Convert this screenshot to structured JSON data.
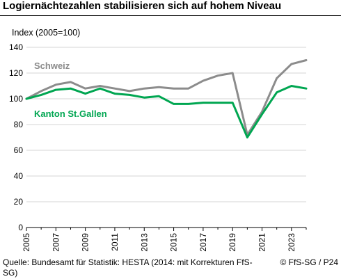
{
  "title": "Logiernächtezahlen stabilisieren sich auf hohem Niveau",
  "source": "Quelle: Bundesamt für Statistik: HESTA (2014: mit Korrekturen FfS-SG)",
  "copyright": "© FfS-SG / P24",
  "chart_data": {
    "type": "line",
    "ylabel": "Index (2005=100)",
    "ylim": [
      0,
      140
    ],
    "yticks": [
      0,
      20,
      40,
      60,
      80,
      100,
      120,
      140
    ],
    "xlim": [
      2005,
      2024
    ],
    "xticks": [
      "2005",
      "2007",
      "2009",
      "2011",
      "2013",
      "2015",
      "2017",
      "2019",
      "2021",
      "2023"
    ],
    "x": [
      2005,
      2006,
      2007,
      2008,
      2009,
      2010,
      2011,
      2012,
      2013,
      2014,
      2015,
      2016,
      2017,
      2018,
      2019,
      2020,
      2021,
      2022,
      2023,
      2024
    ],
    "grid": true,
    "series": [
      {
        "name": "Schweiz",
        "color": "#8c8c8c",
        "values": [
          100,
          106,
          111,
          113,
          108,
          110,
          108,
          106,
          108,
          109,
          108,
          108,
          114,
          118,
          120,
          72,
          90,
          116,
          127,
          130
        ]
      },
      {
        "name": "Kanton St.Gallen",
        "color": "#00a651",
        "values": [
          100,
          103,
          107,
          108,
          104,
          108,
          104,
          103,
          101,
          102,
          96,
          96,
          97,
          97,
          97,
          70,
          88,
          105,
          110,
          108
        ]
      }
    ]
  }
}
